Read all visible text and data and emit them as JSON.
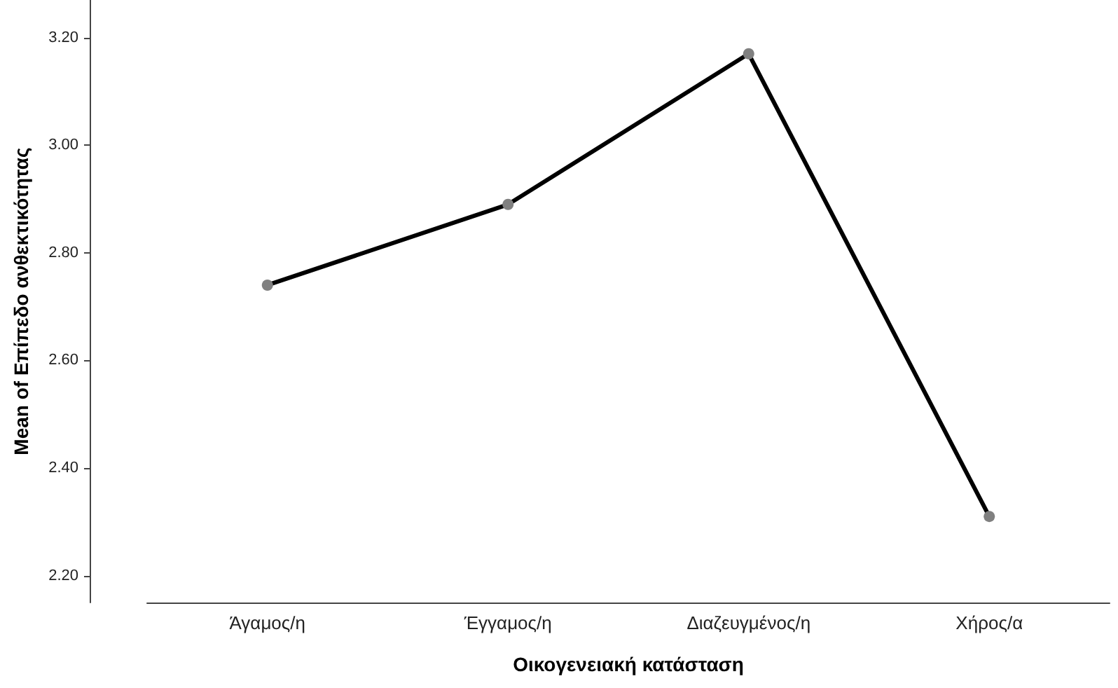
{
  "chart_data": {
    "type": "line",
    "xlabel": "Οικογενειακή κατάσταση",
    "ylabel": "Mean of Επίπεδο ανθεκτικότητας",
    "categories": [
      "Άγαμος/η",
      "Έγγαμος/η",
      "Διαζευγμένος/η",
      "Χήρος/α"
    ],
    "series": [
      {
        "color": "#000000",
        "values": [
          2.74,
          2.89,
          3.17,
          2.31
        ]
      }
    ],
    "ylim": [
      2.15,
      3.27
    ],
    "yticks": [
      {
        "value": 2.2,
        "label": "2.20"
      },
      {
        "value": 2.4,
        "label": "2.40"
      },
      {
        "value": 2.6,
        "label": "2.60"
      },
      {
        "value": 2.8,
        "label": "2.80"
      },
      {
        "value": 3.0,
        "label": "3.00"
      },
      {
        "value": 3.2,
        "label": "3.20"
      }
    ],
    "grid": false,
    "marker": "circle",
    "line_style": "solid"
  }
}
